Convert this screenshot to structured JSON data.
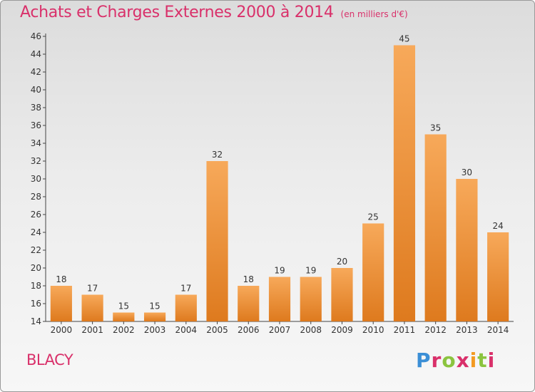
{
  "header": {
    "title": "Achats et Charges Externes 2000 à 2014",
    "unit": "(en milliers d'€)"
  },
  "footer": {
    "town": "BLACY",
    "logo_letters": [
      "P",
      "r",
      "o",
      "x",
      "i",
      "t",
      "i"
    ]
  },
  "colors": {
    "accent": "#d9306a",
    "bar_light": "#f7a95a",
    "bar_dark": "#de7a1e",
    "logo": [
      "#3b8fd6",
      "#8bc43f",
      "#f39a21",
      "#d9306a"
    ]
  },
  "chart_data": {
    "type": "bar",
    "title": "Achats et Charges Externes 2000 à 2014",
    "subtitle": "(en milliers d'€)",
    "xlabel": "",
    "ylabel": "",
    "categories": [
      "2000",
      "2001",
      "2002",
      "2003",
      "2004",
      "2005",
      "2006",
      "2007",
      "2008",
      "2009",
      "2010",
      "2011",
      "2012",
      "2013",
      "2014"
    ],
    "values": [
      18,
      17,
      15,
      15,
      17,
      32,
      18,
      19,
      19,
      20,
      25,
      45,
      35,
      30,
      24
    ],
    "ylim": [
      14,
      46
    ],
    "yticks": [
      14,
      16,
      18,
      20,
      22,
      24,
      26,
      28,
      30,
      32,
      34,
      36,
      38,
      40,
      42,
      44,
      46
    ],
    "grid": false,
    "data_labels": true
  }
}
